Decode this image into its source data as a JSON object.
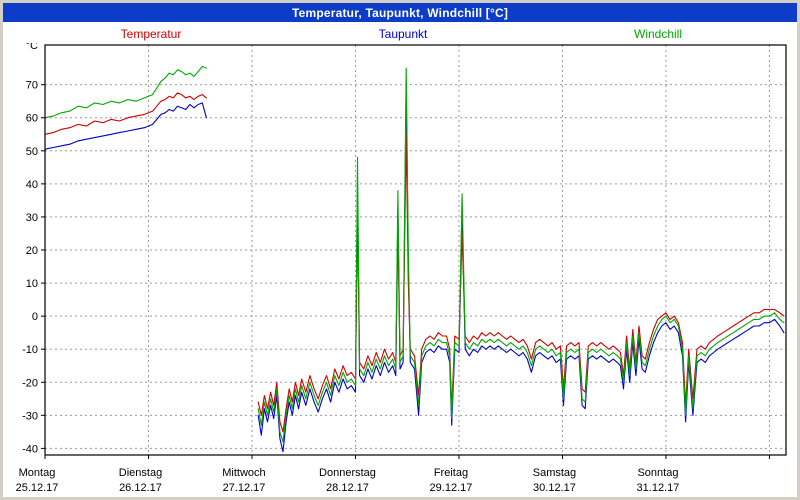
{
  "colors": {
    "titlebar": "#0c3cc8",
    "grid": "#9a9a9a",
    "background": "#ffffff"
  },
  "chart_data": {
    "type": "line",
    "title": "Temperatur, Taupunkt, Windchill [°C]",
    "y_unit": "°C",
    "x_range_days": [
      0,
      7.16
    ],
    "y_axis": {
      "min": -42,
      "max": 82,
      "tick_min": -40,
      "tick_max": 70,
      "tick_step": 10
    },
    "x_ticks_days": [
      0,
      1,
      2,
      3,
      4,
      5,
      6,
      7
    ],
    "grid": "dashed",
    "legend_position": "top",
    "day_labels": [
      {
        "day": "Montag",
        "date": "25.12.17"
      },
      {
        "day": "Dienstag",
        "date": "26.12.17"
      },
      {
        "day": "Mittwoch",
        "date": "27.12.17"
      },
      {
        "day": "Donnerstag",
        "date": "28.12.17"
      },
      {
        "day": "Freitag",
        "date": "29.12.17"
      },
      {
        "day": "Samstag",
        "date": "30.12.17"
      },
      {
        "day": "Sonntag",
        "date": "31.12.17"
      }
    ],
    "series_meta": [
      {
        "name": "Temperatur",
        "color": "#d00000"
      },
      {
        "name": "Taupunkt",
        "color": "#0000c8"
      },
      {
        "name": "Windchill",
        "color": "#00a800"
      }
    ],
    "draw_order": [
      "Taupunkt",
      "Temperatur",
      "Windchill"
    ],
    "segments": [
      {
        "x": [
          0,
          0.08,
          0.16,
          0.24,
          0.32,
          0.4,
          0.48,
          0.56,
          0.64,
          0.72,
          0.8,
          0.88,
          0.96,
          1.04,
          1.08,
          1.12,
          1.16,
          1.2,
          1.24,
          1.28,
          1.32,
          1.36,
          1.4,
          1.44,
          1.48,
          1.52,
          1.56
        ],
        "series": {
          "Temperatur": [
            55,
            55.5,
            56.5,
            57,
            58,
            57.5,
            59,
            58.5,
            59.5,
            59,
            60,
            60.5,
            61,
            62,
            63.5,
            65,
            65.5,
            66.5,
            66,
            67.5,
            67,
            66,
            66.5,
            65.5,
            66.5,
            67,
            66
          ],
          "Taupunkt": [
            50.5,
            51,
            51.5,
            52,
            53,
            53.5,
            54,
            54.5,
            55,
            55.5,
            56,
            56.5,
            57,
            58,
            59.5,
            61,
            61.5,
            62.5,
            62,
            63.5,
            63,
            62.5,
            64,
            63,
            64,
            64.5,
            60
          ],
          "Windchill": [
            60,
            60.5,
            61.5,
            62,
            63.5,
            63,
            64.5,
            64,
            65,
            64.5,
            65.5,
            65,
            66,
            67,
            69,
            71,
            72,
            73.5,
            73,
            74.5,
            74,
            73,
            73.5,
            72.5,
            74,
            75.5,
            75
          ]
        }
      },
      {
        "x": [
          2.06,
          2.09,
          2.12,
          2.15,
          2.18,
          2.21,
          2.24,
          2.27,
          2.3,
          2.33,
          2.36,
          2.39,
          2.42,
          2.45,
          2.48,
          2.52,
          2.56,
          2.6,
          2.64,
          2.68,
          2.72,
          2.76,
          2.8,
          2.84,
          2.88,
          2.92,
          2.96,
          3.0,
          3.02,
          3.04,
          3.08,
          3.12,
          3.16,
          3.2,
          3.24,
          3.28,
          3.32,
          3.36,
          3.39,
          3.41,
          3.43,
          3.46,
          3.49,
          3.51,
          3.53,
          3.57,
          3.61,
          3.64,
          3.68,
          3.72,
          3.76,
          3.8,
          3.84,
          3.88,
          3.91,
          3.93,
          3.96,
          4.0,
          4.03,
          4.06,
          4.1,
          4.14,
          4.18,
          4.22,
          4.26,
          4.3,
          4.34,
          4.38,
          4.42,
          4.46,
          4.5,
          4.54,
          4.58,
          4.62,
          4.66,
          4.7,
          4.74,
          4.78,
          4.82,
          4.86,
          4.9,
          4.94,
          4.98,
          5.01,
          5.04,
          5.08,
          5.12,
          5.16,
          5.19,
          5.22,
          5.25,
          5.29,
          5.33,
          5.37,
          5.41,
          5.45,
          5.49,
          5.53,
          5.56,
          5.59,
          5.62,
          5.65,
          5.68,
          5.71,
          5.74,
          5.77,
          5.8,
          5.84,
          5.88,
          5.92,
          5.96,
          6.0,
          6.04,
          6.08,
          6.12,
          6.16,
          6.19,
          6.22,
          6.26,
          6.3,
          6.34,
          6.38,
          6.42,
          6.46,
          6.5,
          6.55,
          6.6,
          6.65,
          6.7,
          6.75,
          6.8,
          6.85,
          6.9,
          6.95,
          7.0,
          7.05,
          7.1,
          7.14
        ],
        "series": {
          "Temperatur": [
            -26,
            -30,
            -24,
            -28,
            -23,
            -27,
            -20,
            -32,
            -35,
            -28,
            -22,
            -26,
            -20,
            -24,
            -19,
            -23,
            -18,
            -22,
            -25,
            -21,
            -18,
            -22,
            -16,
            -19,
            -15,
            -18,
            -17,
            -19,
            30,
            -14,
            -16,
            -12,
            -15,
            -11,
            -14,
            -10,
            -13,
            -11,
            -14,
            25,
            -12,
            -10,
            55,
            10,
            -10,
            -12,
            -24,
            -10,
            -7,
            -6,
            -7,
            -5,
            -6,
            -6,
            -10,
            -28,
            -6,
            -7,
            25,
            -6,
            -8,
            -6,
            -7,
            -5,
            -6,
            -5,
            -6,
            -5,
            -6,
            -7,
            -6,
            -7,
            -8,
            -7,
            -9,
            -13,
            -8,
            -7,
            -8,
            -9,
            -8,
            -10,
            -9,
            -22,
            -9,
            -8,
            -9,
            -8,
            -22,
            -23,
            -9,
            -8,
            -9,
            -8,
            -9,
            -10,
            -9,
            -10,
            -11,
            -18,
            -6,
            -16,
            -4,
            -14,
            -3,
            -12,
            -13,
            -8,
            -4,
            -1,
            0,
            1,
            -1,
            0,
            -2,
            -8,
            -27,
            -10,
            -25,
            -10,
            -9,
            -10,
            -8,
            -7,
            -6,
            -5,
            -4,
            -3,
            -2,
            -1,
            0,
            1,
            1,
            2,
            2,
            2,
            1,
            0
          ],
          "Taupunkt": [
            -30,
            -36,
            -28,
            -32,
            -27,
            -31,
            -24,
            -37,
            -41,
            -32,
            -26,
            -30,
            -24,
            -28,
            -23,
            -27,
            -22,
            -26,
            -29,
            -25,
            -22,
            -26,
            -20,
            -23,
            -19,
            -22,
            -21,
            -23,
            40,
            -18,
            -20,
            -16,
            -19,
            -15,
            -18,
            -14,
            -17,
            -15,
            -18,
            33,
            -16,
            -14,
            71,
            15,
            -14,
            -16,
            -30,
            -14,
            -11,
            -10,
            -11,
            -9,
            -10,
            -10,
            -14,
            -33,
            -10,
            -11,
            30,
            -10,
            -12,
            -10,
            -11,
            -9,
            -10,
            -9,
            -10,
            -9,
            -10,
            -11,
            -10,
            -11,
            -12,
            -11,
            -13,
            -17,
            -12,
            -11,
            -12,
            -13,
            -12,
            -14,
            -13,
            -27,
            -13,
            -12,
            -13,
            -12,
            -27,
            -28,
            -13,
            -12,
            -13,
            -12,
            -13,
            -14,
            -13,
            -14,
            -15,
            -22,
            -10,
            -20,
            -8,
            -18,
            -7,
            -16,
            -17,
            -12,
            -8,
            -5,
            -3,
            -2,
            -4,
            -3,
            -5,
            -12,
            -32,
            -14,
            -30,
            -14,
            -13,
            -14,
            -12,
            -11,
            -10,
            -9,
            -8,
            -7,
            -6,
            -5,
            -4,
            -3,
            -3,
            -2,
            -2,
            -1,
            -3,
            -5
          ],
          "Windchill": [
            -28,
            -33,
            -26,
            -30,
            -25,
            -29,
            -22,
            -35,
            -38,
            -30,
            -24,
            -28,
            -22,
            -26,
            -21,
            -25,
            -20,
            -24,
            -27,
            -23,
            -20,
            -24,
            -18,
            -21,
            -17,
            -20,
            -19,
            -21,
            48,
            -16,
            -18,
            -14,
            -17,
            -13,
            -16,
            -12,
            -15,
            -13,
            -16,
            38,
            -14,
            -12,
            75,
            20,
            -12,
            -14,
            -27,
            -12,
            -9,
            -8,
            -9,
            -7,
            -8,
            -8,
            -12,
            -31,
            -8,
            -9,
            37,
            -8,
            -10,
            -8,
            -9,
            -7,
            -8,
            -7,
            -8,
            -7,
            -8,
            -9,
            -8,
            -9,
            -10,
            -9,
            -11,
            -15,
            -10,
            -9,
            -10,
            -11,
            -10,
            -12,
            -11,
            -25,
            -11,
            -10,
            -11,
            -10,
            -25,
            -26,
            -11,
            -10,
            -11,
            -10,
            -11,
            -12,
            -11,
            -12,
            -13,
            -20,
            -8,
            -18,
            -6,
            -16,
            -5,
            -14,
            -15,
            -10,
            -6,
            -3,
            -1,
            0,
            -2,
            -1,
            -3,
            -10,
            -30,
            -12,
            -28,
            -12,
            -11,
            -12,
            -10,
            -9,
            -8,
            -7,
            -6,
            -5,
            -4,
            -3,
            -2,
            -1,
            -1,
            0,
            0,
            1,
            -1,
            -2
          ]
        }
      }
    ]
  }
}
